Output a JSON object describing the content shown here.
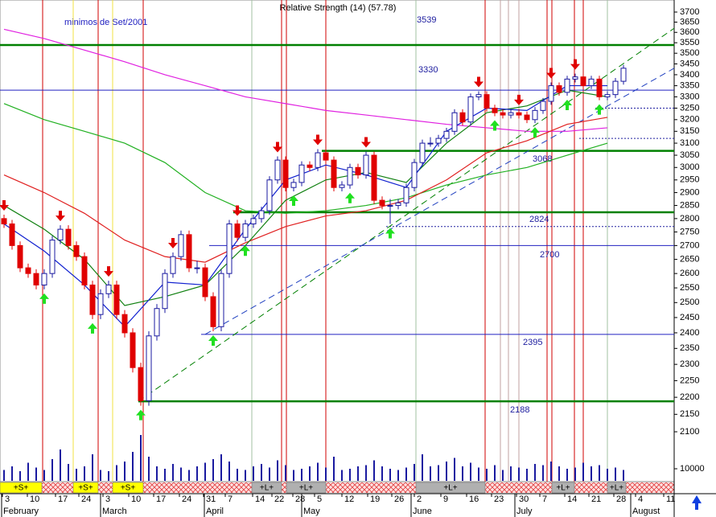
{
  "chart_data": {
    "type": "candlestick",
    "title": "Relative Strength (14) (57.78)",
    "annotation": "minimos de Set/2001",
    "log": true,
    "ylim": [
      2100,
      3700
    ],
    "yticks": [
      2100,
      2150,
      2200,
      2250,
      2300,
      2350,
      2400,
      2450,
      2500,
      2550,
      2600,
      2650,
      2700,
      2750,
      2800,
      2850,
      2900,
      2950,
      3000,
      3050,
      3100,
      3150,
      3200,
      3250,
      3300,
      3350,
      3400,
      3450,
      3500,
      3550,
      3600,
      3650,
      3700
    ],
    "colors": {
      "up": "#ffffff",
      "down": "#e00000",
      "outline": "#1a1aa0"
    },
    "ohlc": [
      [
        2800,
        2815,
        2765,
        2780
      ],
      [
        2780,
        2795,
        2685,
        2700
      ],
      [
        2700,
        2715,
        2605,
        2620
      ],
      [
        2620,
        2635,
        2585,
        2600
      ],
      [
        2600,
        2615,
        2545,
        2560
      ],
      [
        2560,
        2615,
        2545,
        2600
      ],
      [
        2600,
        2735,
        2585,
        2720
      ],
      [
        2720,
        2775,
        2705,
        2760
      ],
      [
        2760,
        2775,
        2685,
        2700
      ],
      [
        2700,
        2715,
        2645,
        2660
      ],
      [
        2660,
        2675,
        2545,
        2560
      ],
      [
        2560,
        2575,
        2445,
        2460
      ],
      [
        2460,
        2545,
        2445,
        2530
      ],
      [
        2530,
        2575,
        2515,
        2560
      ],
      [
        2560,
        2575,
        2445,
        2460
      ],
      [
        2460,
        2475,
        2385,
        2400
      ],
      [
        2400,
        2415,
        2275,
        2290
      ],
      [
        2290,
        2305,
        2175,
        2190
      ],
      [
        2190,
        2405,
        2175,
        2390
      ],
      [
        2390,
        2495,
        2375,
        2480
      ],
      [
        2480,
        2615,
        2465,
        2600
      ],
      [
        2600,
        2675,
        2585,
        2660
      ],
      [
        2660,
        2755,
        2645,
        2740
      ],
      [
        2740,
        2755,
        2605,
        2620
      ],
      [
        2620,
        2645,
        2600,
        2620
      ],
      [
        2620,
        2635,
        2505,
        2520
      ],
      [
        2520,
        2535,
        2405,
        2420
      ],
      [
        2420,
        2615,
        2405,
        2600
      ],
      [
        2600,
        2795,
        2585,
        2780
      ],
      [
        2780,
        2795,
        2715,
        2730
      ],
      [
        2730,
        2795,
        2715,
        2780
      ],
      [
        2780,
        2815,
        2765,
        2800
      ],
      [
        2800,
        2845,
        2785,
        2830
      ],
      [
        2830,
        2965,
        2815,
        2950
      ],
      [
        2950,
        3045,
        2935,
        3030
      ],
      [
        3030,
        3045,
        2905,
        2920
      ],
      [
        2920,
        2955,
        2905,
        2940
      ],
      [
        2940,
        3025,
        2925,
        3010
      ],
      [
        3010,
        3025,
        2985,
        3000
      ],
      [
        3000,
        3075,
        2985,
        3060
      ],
      [
        3060,
        3075,
        3015,
        3030
      ],
      [
        3030,
        3045,
        2905,
        2920
      ],
      [
        2920,
        2945,
        2905,
        2930
      ],
      [
        2930,
        3015,
        2915,
        3000
      ],
      [
        3000,
        3015,
        2955,
        2970
      ],
      [
        2970,
        3065,
        2955,
        3050
      ],
      [
        3050,
        3065,
        2855,
        2870
      ],
      [
        2870,
        2885,
        2835,
        2850
      ],
      [
        2850,
        2875,
        2780,
        2850
      ],
      [
        2850,
        2875,
        2835,
        2860
      ],
      [
        2860,
        2935,
        2845,
        2920
      ],
      [
        2920,
        3035,
        2905,
        3020
      ],
      [
        3020,
        3115,
        3005,
        3100
      ],
      [
        3100,
        3125,
        3085,
        3100
      ],
      [
        3100,
        3135,
        3085,
        3120
      ],
      [
        3120,
        3165,
        3105,
        3150
      ],
      [
        3150,
        3245,
        3135,
        3230
      ],
      [
        3230,
        3245,
        3175,
        3190
      ],
      [
        3190,
        3315,
        3175,
        3300
      ],
      [
        3300,
        3325,
        3285,
        3310
      ],
      [
        3310,
        3325,
        3235,
        3250
      ],
      [
        3250,
        3265,
        3215,
        3230
      ],
      [
        3230,
        3245,
        3205,
        3220
      ],
      [
        3220,
        3245,
        3205,
        3230
      ],
      [
        3230,
        3245,
        3205,
        3220
      ],
      [
        3220,
        3235,
        3185,
        3200
      ],
      [
        3200,
        3255,
        3185,
        3240
      ],
      [
        3240,
        3295,
        3225,
        3280
      ],
      [
        3280,
        3365,
        3265,
        3350
      ],
      [
        3350,
        3365,
        3305,
        3320
      ],
      [
        3320,
        3395,
        3305,
        3380
      ],
      [
        3380,
        3405,
        3365,
        3390
      ],
      [
        3390,
        3405,
        3335,
        3350
      ],
      [
        3350,
        3395,
        3335,
        3380
      ],
      [
        3380,
        3395,
        3285,
        3300
      ],
      [
        3300,
        3325,
        3285,
        3310
      ],
      [
        3310,
        3385,
        3295,
        3370
      ],
      [
        3370,
        3445,
        3355,
        3430
      ]
    ],
    "series": [
      {
        "color": "#e020e0",
        "values": [
          3615,
          3570,
          3515,
          3460,
          3400,
          3350,
          3300,
          3270,
          3240,
          3220,
          3200,
          3180,
          3165,
          3150,
          3150,
          3165
        ]
      },
      {
        "color": "#20b020",
        "values": [
          3270,
          3200,
          3150,
          3100,
          3020,
          2900,
          2830,
          2820,
          2830,
          2850,
          2880,
          2930,
          2970,
          3000,
          3050,
          3100
        ]
      },
      {
        "color": "#e02020",
        "values": [
          2970,
          2900,
          2820,
          2720,
          2660,
          2640,
          2710,
          2770,
          2810,
          2830,
          2870,
          2950,
          3060,
          3110,
          3180,
          3210
        ]
      },
      {
        "color": "#108010",
        "values": [
          2850,
          2760,
          2650,
          2490,
          2520,
          2560,
          2700,
          2870,
          2950,
          2980,
          2940,
          3100,
          3230,
          3260,
          3330,
          3300
        ]
      },
      {
        "color": "#1020d0",
        "values": [
          2780,
          2680,
          2560,
          2420,
          2570,
          2560,
          2760,
          2950,
          3010,
          2970,
          2920,
          3150,
          3250,
          3240,
          3350,
          3350
        ]
      }
    ],
    "levels": [
      {
        "value": 3539,
        "color": "#008000"
      },
      {
        "value": 3330,
        "color": "#2020c0"
      },
      {
        "value": 3068,
        "color": "#008000"
      },
      {
        "value": 2824,
        "color": "#008000"
      },
      {
        "value": 2700,
        "color": "#2020c0"
      },
      {
        "value": 2395,
        "color": "#2020c0"
      },
      {
        "value": 2188,
        "color": "#008000"
      }
    ],
    "dotted_levels": [
      2770,
      3250,
      3120
    ],
    "trendlines": [
      {
        "color": "#008000",
        "values": [
          2188,
          3620
        ]
      },
      {
        "color": "#2040c0",
        "values": [
          2395,
          3430
        ]
      }
    ],
    "volume": [
      9000,
      12000,
      8000,
      15000,
      11000,
      9000,
      18000,
      26000,
      14000,
      10000,
      12000,
      22000,
      9000,
      8000,
      13000,
      16000,
      24000,
      38000,
      20000,
      12000,
      10000,
      14000,
      11000,
      9000,
      12000,
      15000,
      18000,
      22000,
      16000,
      10000,
      9000,
      12000,
      14000,
      11000,
      17000,
      13000,
      9000,
      10000,
      12000,
      15000,
      11000,
      20000,
      9000,
      10000,
      12000,
      13000,
      17000,
      12000,
      10000,
      9000,
      11000,
      14000,
      22000,
      12000,
      13000,
      16000,
      19000,
      12000,
      15000,
      11000,
      10000,
      13000,
      9000,
      12000,
      11000,
      10000,
      14000,
      13000,
      16000,
      12000,
      10000,
      11000,
      15000,
      12000,
      13000,
      10000,
      11000,
      9000
    ],
    "volume_ticks": [
      10000
    ],
    "signals": [
      "+S+",
      "+S+",
      "+S+",
      "+L+",
      "+L+",
      "+L+",
      "+L+",
      "+L+"
    ],
    "x_labels": [
      "3",
      "10",
      "17",
      "24",
      "3",
      "10",
      "17",
      "24",
      "31",
      "7",
      "14",
      "22",
      "28",
      "5",
      "12",
      "19",
      "26",
      "2",
      "9",
      "16",
      "23",
      "30",
      "7",
      "14",
      "21",
      "28",
      "4",
      "11"
    ],
    "months": [
      "February",
      "March",
      "April",
      "May",
      "June",
      "July",
      "August"
    ]
  }
}
